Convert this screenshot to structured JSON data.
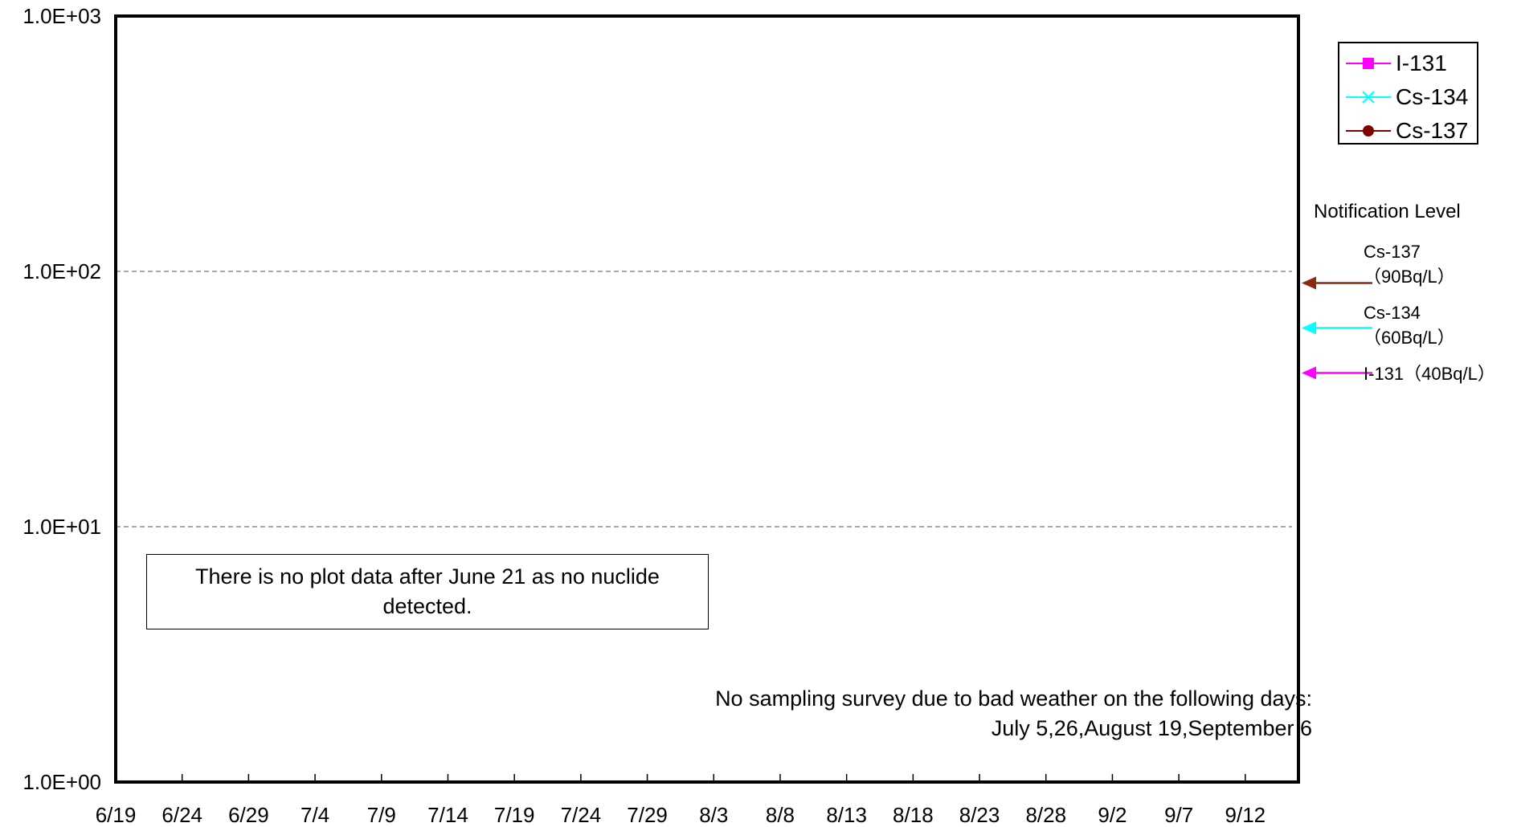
{
  "chart_data": {
    "type": "line",
    "y_scale": "log",
    "ylim": [
      1,
      1000
    ],
    "y_ticks": [
      "1.0E+00",
      "1.0E+01",
      "1.0E+02",
      "1.0E+03"
    ],
    "y_gridlines": [
      10,
      100
    ],
    "x_start": "6/19",
    "x_end": "9/16",
    "x_ticks": [
      "6/19",
      "6/24",
      "6/29",
      "7/4",
      "7/9",
      "7/14",
      "7/19",
      "7/24",
      "7/29",
      "8/3",
      "8/8",
      "8/13",
      "8/18",
      "8/23",
      "8/28",
      "9/2",
      "9/7",
      "9/12"
    ],
    "series": [
      {
        "name": "I-131",
        "color": "#ff00ff",
        "marker": "square",
        "values": []
      },
      {
        "name": "Cs-134",
        "color": "#00ffff",
        "marker": "x",
        "values": []
      },
      {
        "name": "Cs-137",
        "color": "#800000",
        "marker": "circle",
        "values": []
      }
    ],
    "legend_position": "top-right, outside plot",
    "notification_levels": {
      "title": "Notification Level",
      "items": [
        {
          "nuclide": "Cs-137",
          "value": 90,
          "line1": "Cs-137",
          "line2": "（90Bq/L）",
          "color": "#8b2a0e"
        },
        {
          "nuclide": "Cs-134",
          "value": 60,
          "line1": "Cs-134",
          "line2": "（60Bq/L）",
          "color": "#00ffff"
        },
        {
          "nuclide": "I-131",
          "value": 40,
          "line1": "I-131（40Bq/L）",
          "line2": "",
          "color": "#ff00ff"
        }
      ]
    },
    "annotations": {
      "no_data_note": "There is no plot data after June 21 as no nuclide detected.",
      "weather_note_line1": "No sampling survey due to bad weather on the following days:",
      "weather_note_line2": "July 5,26,August 19,September 6"
    }
  }
}
